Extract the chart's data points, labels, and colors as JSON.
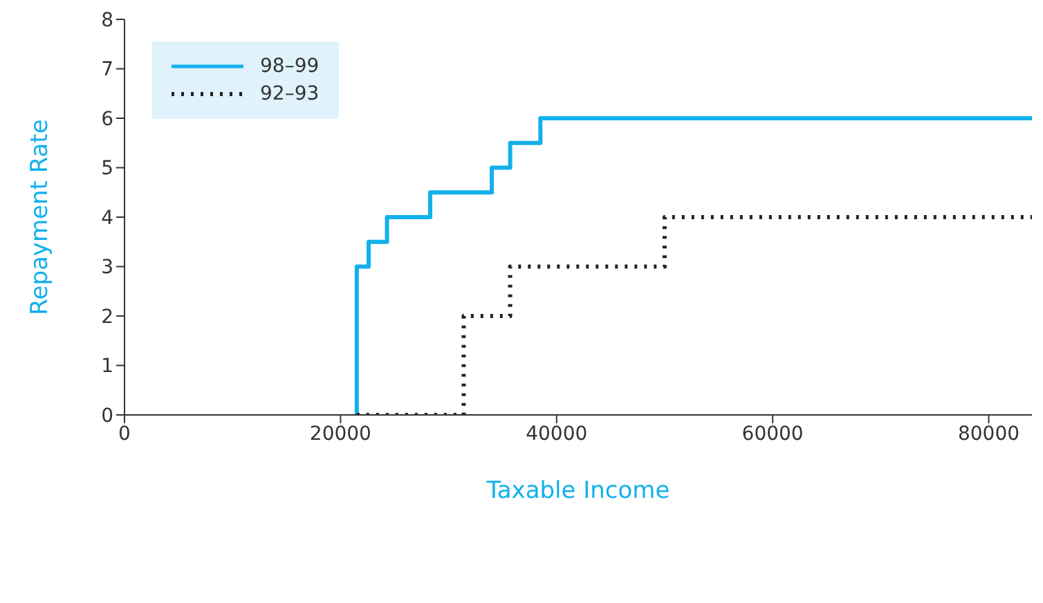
{
  "chart_data": {
    "type": "step",
    "xlabel": "Taxable Income",
    "ylabel": "Repayment Rate",
    "series": [
      {
        "name": "98–99",
        "color": "#12b0ec",
        "line_style": "solid",
        "x": [
          21500,
          21500,
          22600,
          24300,
          28300,
          34000,
          35700,
          38500,
          84000
        ],
        "values": [
          0,
          3,
          3.5,
          4,
          4.5,
          5,
          5.5,
          6,
          6
        ]
      },
      {
        "name": "92–93",
        "color": "#222222",
        "line_style": "dotted",
        "x": [
          21500,
          31400,
          35700,
          50000,
          84000
        ],
        "values": [
          0,
          2,
          3,
          4,
          4
        ]
      }
    ],
    "xlim": [
      0,
      84000
    ],
    "xticks": [
      0,
      20000,
      40000,
      60000,
      80000
    ],
    "ylim": [
      0,
      8
    ],
    "yticks": [
      0,
      1,
      2,
      3,
      4,
      5,
      6,
      7,
      8
    ],
    "legend": "top left",
    "marker": "none"
  }
}
